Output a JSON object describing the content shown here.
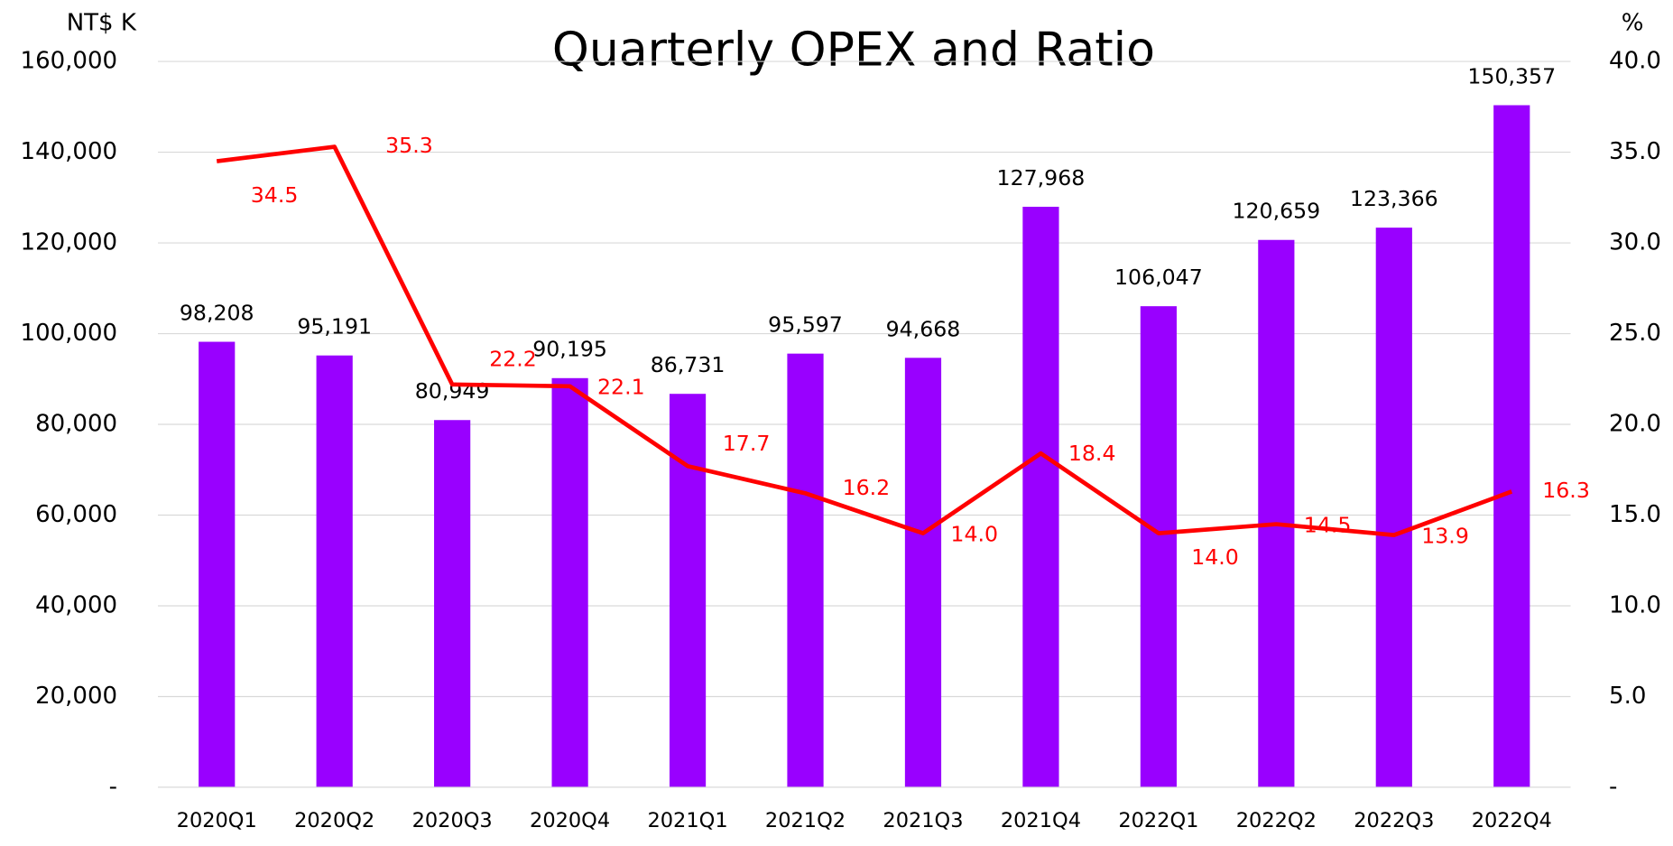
{
  "chart_data": {
    "type": "bar_line",
    "title": "Quarterly OPEX and Ratio",
    "y_axis_label": "NT$ K",
    "y2_axis_label": "%",
    "categories": [
      "2020Q1",
      "2020Q2",
      "2020Q3",
      "2020Q4",
      "2021Q1",
      "2021Q2",
      "2021Q3",
      "2021Q4",
      "2022Q1",
      "2022Q2",
      "2022Q3",
      "2022Q4"
    ],
    "series": [
      {
        "name": "OPEX",
        "type": "bar",
        "color": "#9900ff",
        "values": [
          98208,
          95191,
          80949,
          90195,
          86731,
          95597,
          94668,
          127968,
          106047,
          120659,
          123366,
          150357
        ],
        "value_labels": [
          "98,208",
          "95,191",
          "80,949",
          "90,195",
          "86,731",
          "95,597",
          "94,668",
          "127,968",
          "106,047",
          "120,659",
          "123,366",
          "150,357"
        ]
      },
      {
        "name": "Ratio",
        "type": "line",
        "axis": "y2",
        "color": "#ff0000",
        "values": [
          34.5,
          35.3,
          22.2,
          22.1,
          17.7,
          16.2,
          14.0,
          18.4,
          14.0,
          14.5,
          13.9,
          16.3
        ],
        "value_labels": [
          "34.5",
          "35.3",
          "22.2",
          "22.1",
          "17.7",
          "16.2",
          "14.0",
          "18.4",
          "14.0",
          "14.5",
          "13.9",
          "16.3"
        ]
      }
    ],
    "ylim": [
      0,
      160000
    ],
    "yticks": [
      {
        "value": 0,
        "label": "-"
      },
      {
        "value": 20000,
        "label": "20,000"
      },
      {
        "value": 40000,
        "label": "40,000"
      },
      {
        "value": 60000,
        "label": "60,000"
      },
      {
        "value": 80000,
        "label": "80,000"
      },
      {
        "value": 100000,
        "label": "100,000"
      },
      {
        "value": 120000,
        "label": "120,000"
      },
      {
        "value": 140000,
        "label": "140,000"
      },
      {
        "value": 160000,
        "label": "160,000"
      }
    ],
    "y2lim": [
      0,
      40
    ],
    "y2ticks": [
      {
        "value": 0,
        "label": "-"
      },
      {
        "value": 5,
        "label": "5.0"
      },
      {
        "value": 10,
        "label": "10.0"
      },
      {
        "value": 15,
        "label": "15.0"
      },
      {
        "value": 20,
        "label": "20.0"
      },
      {
        "value": 25,
        "label": "25.0"
      },
      {
        "value": 30,
        "label": "30.0"
      },
      {
        "value": 35,
        "label": "35.0"
      },
      {
        "value": 40,
        "label": "40.0"
      }
    ],
    "grid": true
  }
}
